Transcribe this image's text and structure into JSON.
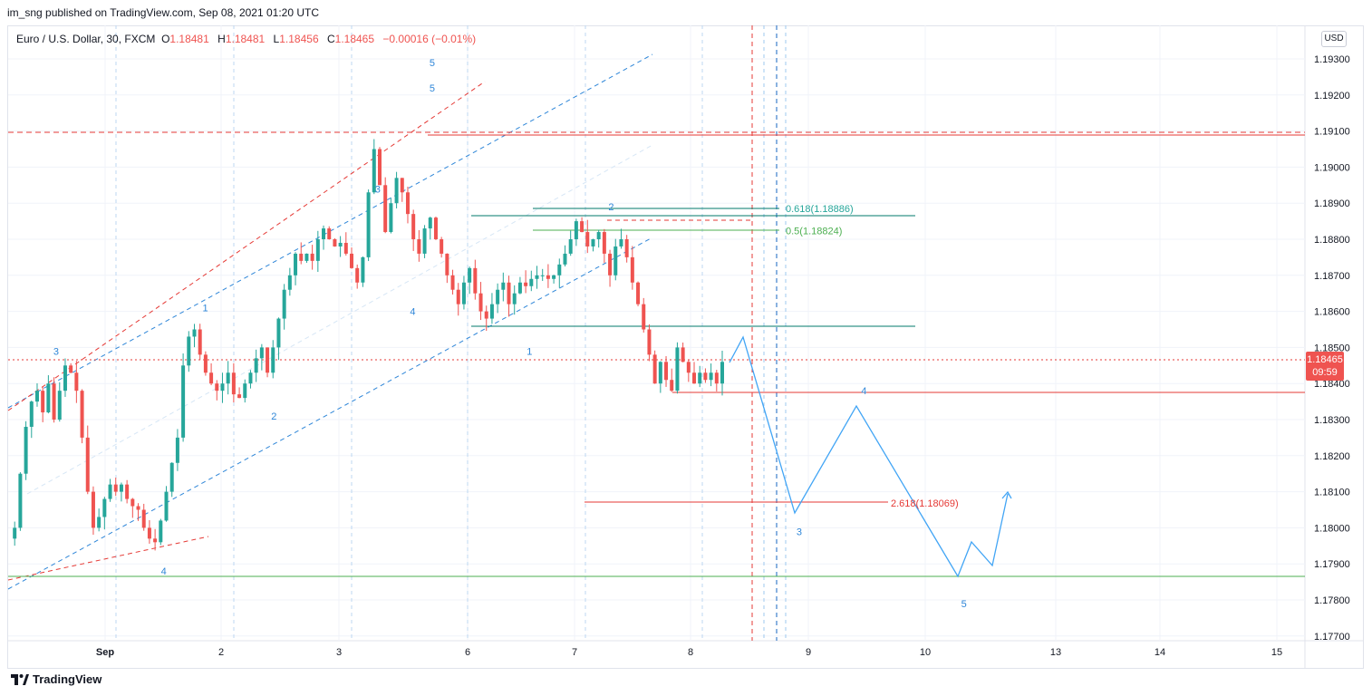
{
  "header": {
    "publisher": "im_sng published on TradingView.com, Sep 08, 2021 01:20 UTC"
  },
  "legend": {
    "symbol": "Euro / U.S. Dollar, 30, FXCM",
    "o_label": "O",
    "o_value": "1.18481",
    "h_label": "H",
    "h_value": "1.18481",
    "l_label": "L",
    "l_value": "1.18456",
    "c_label": "C",
    "c_value": "1.18465",
    "change": "−0.00016 (−0.01%)"
  },
  "currency_button": "USD",
  "last_price": {
    "price": "1.18465",
    "countdown": "09:59"
  },
  "footer": {
    "logo_text": "TradingView"
  },
  "colors": {
    "up": "#26a69a",
    "down": "#ef5350",
    "blue": "#2e86d8",
    "red": "#e53935",
    "green": "#4caf50",
    "teal": "#26a69a",
    "grid": "#f0f3fa"
  },
  "chart_data": {
    "type": "candlestick",
    "ylim": [
      1.1768,
      1.1935
    ],
    "y_ticks": [
      "1.19300",
      "1.19200",
      "1.19100",
      "1.19000",
      "1.18900",
      "1.18800",
      "1.18700",
      "1.18600",
      "1.18500",
      "1.18400",
      "1.18300",
      "1.18200",
      "1.18100",
      "1.18000",
      "1.17900",
      "1.17800",
      "1.17700"
    ],
    "x_ticks": [
      "Sep",
      "2",
      "3",
      "6",
      "7",
      "8",
      "9",
      "10",
      "13",
      "14",
      "15"
    ],
    "price_path": [
      [
        0,
        1.1797
      ],
      [
        4,
        1.18
      ],
      [
        8,
        1.1815
      ],
      [
        12,
        1.1828
      ],
      [
        16,
        1.1835
      ],
      [
        20,
        1.1838
      ],
      [
        24,
        1.1832
      ],
      [
        28,
        1.184
      ],
      [
        32,
        1.183
      ],
      [
        36,
        1.1838
      ],
      [
        40,
        1.1845
      ],
      [
        44,
        1.1843
      ],
      [
        48,
        1.1838
      ],
      [
        52,
        1.1825
      ],
      [
        56,
        1.181
      ],
      [
        60,
        1.18
      ],
      [
        64,
        1.1803
      ],
      [
        68,
        1.1808
      ],
      [
        72,
        1.1812
      ],
      [
        76,
        1.181
      ],
      [
        80,
        1.1812
      ],
      [
        84,
        1.1808
      ],
      [
        88,
        1.1806
      ],
      [
        92,
        1.1805
      ],
      [
        96,
        1.18
      ],
      [
        100,
        1.1797
      ],
      [
        104,
        1.1796
      ],
      [
        108,
        1.1802
      ],
      [
        112,
        1.181
      ],
      [
        116,
        1.1818
      ],
      [
        120,
        1.1825
      ],
      [
        124,
        1.1845
      ],
      [
        128,
        1.1853
      ],
      [
        132,
        1.1855
      ],
      [
        136,
        1.1848
      ],
      [
        140,
        1.1843
      ],
      [
        144,
        1.184
      ],
      [
        148,
        1.1838
      ],
      [
        152,
        1.184
      ],
      [
        156,
        1.1843
      ],
      [
        160,
        1.1837
      ],
      [
        164,
        1.1836
      ],
      [
        168,
        1.184
      ],
      [
        172,
        1.1843
      ],
      [
        176,
        1.1847
      ],
      [
        180,
        1.185
      ],
      [
        184,
        1.1843
      ],
      [
        188,
        1.185
      ],
      [
        192,
        1.1858
      ],
      [
        196,
        1.1866
      ],
      [
        200,
        1.187
      ],
      [
        204,
        1.1876
      ],
      [
        208,
        1.1874
      ],
      [
        212,
        1.1876
      ],
      [
        216,
        1.1874
      ],
      [
        220,
        1.188
      ],
      [
        224,
        1.1883
      ],
      [
        228,
        1.188
      ],
      [
        232,
        1.1878
      ],
      [
        236,
        1.1879
      ],
      [
        240,
        1.1876
      ],
      [
        244,
        1.1872
      ],
      [
        248,
        1.1868
      ],
      [
        252,
        1.1875
      ],
      [
        256,
        1.1893
      ],
      [
        260,
        1.1905
      ],
      [
        264,
        1.1895
      ],
      [
        268,
        1.1882
      ],
      [
        272,
        1.189
      ],
      [
        276,
        1.1897
      ],
      [
        280,
        1.1893
      ],
      [
        284,
        1.1887
      ],
      [
        288,
        1.188
      ],
      [
        292,
        1.1876
      ],
      [
        296,
        1.1883
      ],
      [
        300,
        1.1886
      ],
      [
        304,
        1.188
      ],
      [
        308,
        1.1876
      ],
      [
        312,
        1.187
      ],
      [
        316,
        1.1866
      ],
      [
        320,
        1.1862
      ],
      [
        324,
        1.1868
      ],
      [
        328,
        1.1872
      ],
      [
        332,
        1.1865
      ],
      [
        336,
        1.186
      ],
      [
        340,
        1.1858
      ],
      [
        344,
        1.1862
      ],
      [
        348,
        1.1866
      ],
      [
        352,
        1.1868
      ],
      [
        356,
        1.1862
      ],
      [
        360,
        1.1865
      ],
      [
        364,
        1.1868
      ],
      [
        368,
        1.1867
      ],
      [
        372,
        1.1869
      ],
      [
        376,
        1.187
      ],
      [
        380,
        1.187
      ],
      [
        384,
        1.1869
      ],
      [
        388,
        1.187
      ],
      [
        392,
        1.1873
      ],
      [
        396,
        1.1876
      ],
      [
        400,
        1.188
      ],
      [
        404,
        1.1885
      ],
      [
        408,
        1.1882
      ],
      [
        412,
        1.1878
      ],
      [
        416,
        1.188
      ],
      [
        420,
        1.1882
      ],
      [
        424,
        1.1876
      ],
      [
        428,
        1.187
      ],
      [
        432,
        1.1878
      ],
      [
        436,
        1.188
      ],
      [
        440,
        1.1875
      ],
      [
        444,
        1.1868
      ],
      [
        448,
        1.1862
      ],
      [
        452,
        1.1855
      ],
      [
        456,
        1.1848
      ],
      [
        460,
        1.184
      ],
      [
        464,
        1.1846
      ],
      [
        468,
        1.1841
      ],
      [
        472,
        1.1838
      ],
      [
        476,
        1.185
      ],
      [
        480,
        1.1846
      ],
      [
        484,
        1.1843
      ],
      [
        488,
        1.184
      ],
      [
        492,
        1.1843
      ],
      [
        496,
        1.1841
      ],
      [
        500,
        1.1843
      ],
      [
        504,
        1.184
      ],
      [
        508,
        1.1846
      ]
    ],
    "annotations": {
      "wave_labels": [
        {
          "text": "3",
          "x": 0.037,
          "p": 1.1849
        },
        {
          "text": "1",
          "x": 0.152,
          "p": 1.1861
        },
        {
          "text": "2",
          "x": 0.205,
          "p": 1.1831
        },
        {
          "text": "3",
          "x": 0.285,
          "p": 1.1894
        },
        {
          "text": "4",
          "x": 0.312,
          "p": 1.186
        },
        {
          "text": "5",
          "x": 0.327,
          "p": 1.1922
        },
        {
          "text": "5",
          "x": 0.327,
          "p": 1.1929
        },
        {
          "text": "4",
          "x": 0.12,
          "p": 1.1788
        },
        {
          "text": "1",
          "x": 0.402,
          "p": 1.1849
        },
        {
          "text": "2",
          "x": 0.465,
          "p": 1.1889
        },
        {
          "text": "3",
          "x": 0.61,
          "p": 1.1799
        },
        {
          "text": "4",
          "x": 0.66,
          "p": 1.1838
        },
        {
          "text": "5",
          "x": 0.737,
          "p": 1.1779
        }
      ],
      "fib_labels": [
        {
          "text": "0.618(1.18886)",
          "p": 1.18886,
          "color": "#26a69a"
        },
        {
          "text": "0.5(1.18824)",
          "p": 1.18824,
          "color": "#4caf50"
        },
        {
          "text": "2.618(1.18069)",
          "p": 1.18069,
          "color": "#e53935"
        }
      ]
    }
  }
}
